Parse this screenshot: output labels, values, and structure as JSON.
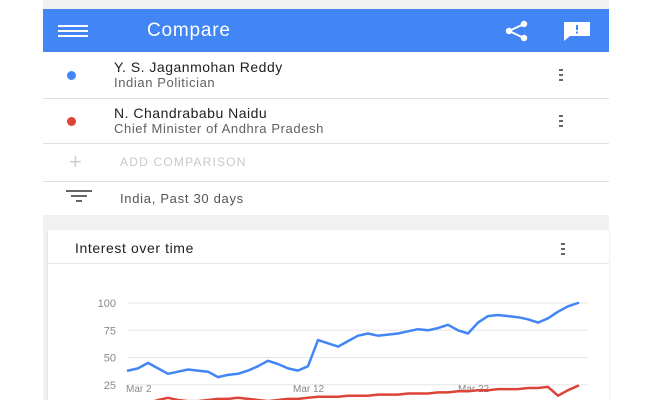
{
  "app_bar": {
    "title": "Compare",
    "color": "#4285f4",
    "menu_icon": "hamburger-menu-icon",
    "share_icon": "share-icon",
    "feedback_icon": "feedback-icon"
  },
  "terms": [
    {
      "name": "Y. S. Jaganmohan Reddy",
      "subtitle": "Indian Politician",
      "color": "#4285f4"
    },
    {
      "name": "N. Chandrababu Naidu",
      "subtitle": "Chief Minister of Andhra Pradesh",
      "color": "#db4437"
    }
  ],
  "add_comparison": {
    "label": "ADD COMPARISON",
    "icon": "plus-icon"
  },
  "filter": {
    "label": "India, Past 30 days",
    "icon": "filter-icon"
  },
  "chart_card": {
    "title": "Interest over time",
    "menu_icon": "more-vert-icon"
  },
  "chart_data": {
    "type": "line",
    "title": "Interest over time",
    "x_tick_labels": [
      "Mar 2",
      "Mar 12",
      "Mar 22"
    ],
    "y_tick_labels": [
      "25",
      "50",
      "75",
      "100"
    ],
    "ylim": [
      0,
      100
    ],
    "grid": true,
    "series": [
      {
        "name": "Y. S. Jaganmohan Reddy",
        "color": "#4285f4",
        "values": [
          38,
          40,
          45,
          40,
          35,
          37,
          39,
          38,
          37,
          32,
          34,
          35,
          38,
          42,
          47,
          44,
          40,
          38,
          42,
          66,
          63,
          60,
          65,
          70,
          72,
          70,
          71,
          72,
          74,
          76,
          75,
          77,
          80,
          75,
          72,
          82,
          88,
          89,
          88,
          87,
          85,
          82,
          86,
          92,
          97,
          100
        ]
      },
      {
        "name": "N. Chandrababu Naidu",
        "color": "#db4437",
        "values": [
          10,
          9,
          8,
          11,
          13,
          11,
          10,
          10,
          11,
          12,
          12,
          13,
          12,
          11,
          10,
          11,
          12,
          12,
          13,
          14,
          14,
          14,
          15,
          15,
          15,
          16,
          16,
          16,
          17,
          17,
          17,
          18,
          18,
          19,
          19,
          20,
          20,
          21,
          21,
          21,
          22,
          22,
          23,
          15,
          20,
          24
        ]
      }
    ]
  }
}
